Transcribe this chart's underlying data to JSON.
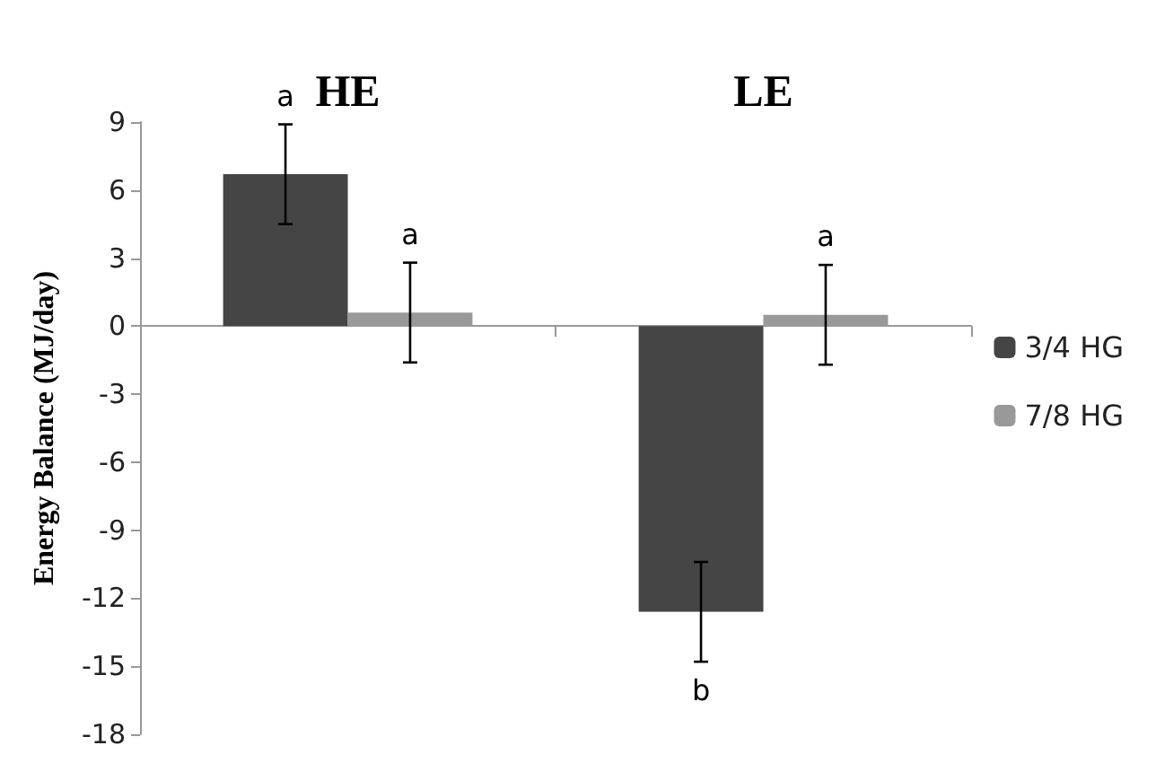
{
  "chart_data": {
    "type": "bar",
    "ylabel": "Energy Balance (MJ/day)",
    "categories": [
      "HE",
      "LE"
    ],
    "series": [
      {
        "name": "3/4 HG",
        "color": "#454545",
        "values": [
          6.7,
          -12.6
        ],
        "errors": [
          2.2,
          2.2
        ],
        "value_labels": [
          "a",
          "b"
        ]
      },
      {
        "name": "7/8 HG",
        "color": "#999999",
        "values": [
          0.6,
          0.5
        ],
        "errors": [
          2.2,
          2.2
        ],
        "value_labels": [
          "a",
          "a"
        ]
      }
    ],
    "ylim": [
      -18,
      9
    ],
    "yticks": [
      -18,
      -15,
      -12,
      -9,
      -6,
      -3,
      0,
      3,
      6,
      9
    ],
    "legend": "right"
  }
}
